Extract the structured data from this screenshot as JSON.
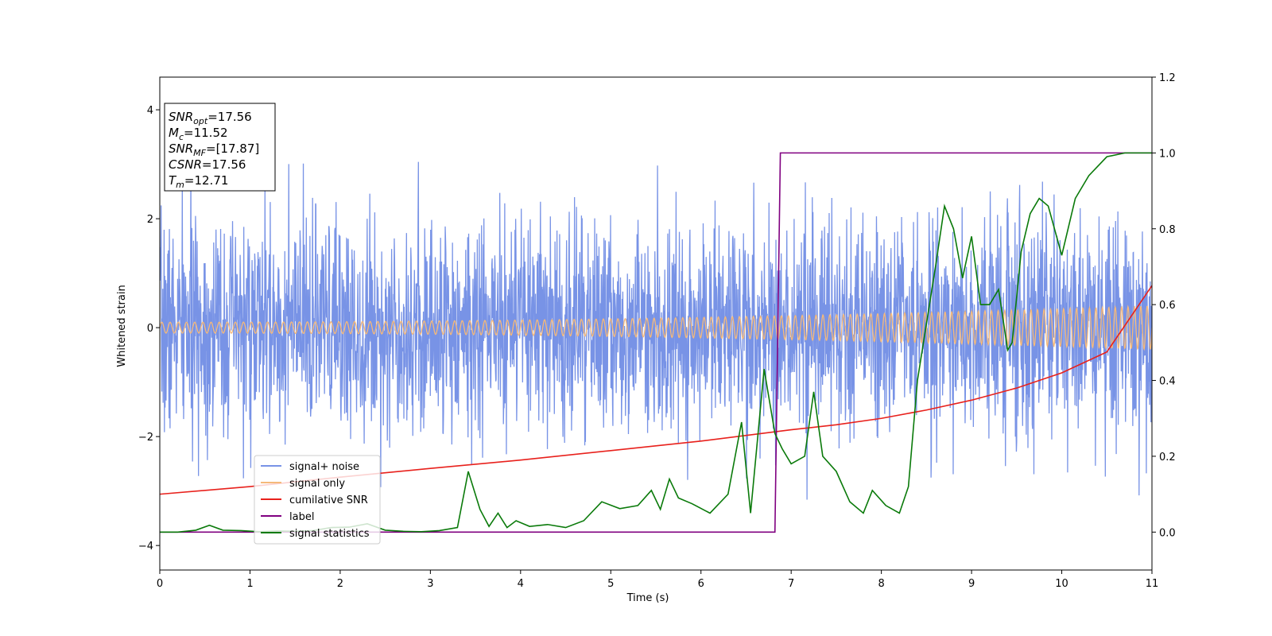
{
  "chart_data": {
    "type": "line",
    "xlabel": "Time (s)",
    "ylabel": "Whitened strain",
    "xlim": [
      0,
      11
    ],
    "ylim": [
      -4.45,
      4.6
    ],
    "y2lim": [
      -0.1,
      1.2
    ],
    "x_ticks": [
      "0",
      "1",
      "2",
      "3",
      "4",
      "5",
      "6",
      "7",
      "8",
      "9",
      "10",
      "11"
    ],
    "y_ticks": [
      "−4",
      "−2",
      "0",
      "2",
      "4"
    ],
    "y2_ticks": [
      "0.0",
      "0.2",
      "0.4",
      "0.6",
      "0.8",
      "1.0",
      "1.2"
    ],
    "grid": false,
    "legend_position": "lower-left",
    "annotation": [
      {
        "base": "SNR",
        "sub": "opt",
        "rest": "=17.56"
      },
      {
        "base": "M",
        "sub": "c",
        "rest": "=11.52"
      },
      {
        "base": "SNR",
        "sub": "MF",
        "rest": "=[17.87]"
      },
      {
        "base": "CSNR",
        "sub": "",
        "rest": "=17.56"
      },
      {
        "base": "T",
        "sub": "m",
        "rest": "=12.71"
      }
    ],
    "series": [
      {
        "name": "signal+ noise",
        "axis": "left",
        "color": "#7893e6",
        "description": "noisy strain, approx. uniform noise amplitude ~1.2 std, peaks up to ±4",
        "noise_std": 1.25,
        "noise_seed": 7
      },
      {
        "name": "signal only",
        "axis": "left",
        "color": "#f5b97a",
        "amplitude_start": 0.1,
        "amplitude_end": 0.4,
        "cycles": 120
      },
      {
        "name": "cumilative SNR",
        "axis": "right",
        "color": "#e8211c",
        "x": [
          0,
          1,
          2,
          3,
          4,
          5,
          6,
          7,
          7.5,
          8,
          8.5,
          9,
          9.5,
          10,
          10.5,
          11
        ],
        "y": [
          0.1,
          0.12,
          0.145,
          0.168,
          0.19,
          0.215,
          0.24,
          0.27,
          0.283,
          0.3,
          0.322,
          0.348,
          0.38,
          0.42,
          0.475,
          0.65
        ]
      },
      {
        "name": "label",
        "axis": "right",
        "color": "#800080",
        "x": [
          0,
          6.82,
          6.88,
          11
        ],
        "y": [
          0,
          0,
          1,
          1
        ]
      },
      {
        "name": "signal statistics",
        "axis": "right",
        "color": "#0a7a0a",
        "x": [
          0,
          0.2,
          0.4,
          0.55,
          0.7,
          0.9,
          1.1,
          1.3,
          1.5,
          1.7,
          1.9,
          2.1,
          2.3,
          2.5,
          2.7,
          2.9,
          3.1,
          3.3,
          3.42,
          3.55,
          3.65,
          3.75,
          3.85,
          3.95,
          4.1,
          4.3,
          4.5,
          4.7,
          4.9,
          5.1,
          5.3,
          5.45,
          5.55,
          5.65,
          5.75,
          5.9,
          6.1,
          6.3,
          6.45,
          6.55,
          6.7,
          6.82,
          6.9,
          7.0,
          7.15,
          7.25,
          7.35,
          7.5,
          7.65,
          7.8,
          7.9,
          8.05,
          8.2,
          8.3,
          8.4,
          8.5,
          8.6,
          8.7,
          8.8,
          8.9,
          9.0,
          9.1,
          9.2,
          9.3,
          9.4,
          9.45,
          9.55,
          9.65,
          9.75,
          9.85,
          10.0,
          10.15,
          10.3,
          10.5,
          10.7,
          10.9,
          11.0
        ],
        "y": [
          0,
          0,
          0.005,
          0.018,
          0.005,
          0.004,
          0.001,
          0.003,
          0.002,
          0.004,
          0.012,
          0.013,
          0.022,
          0.005,
          0.002,
          0.001,
          0.004,
          0.012,
          0.16,
          0.06,
          0.015,
          0.05,
          0.012,
          0.03,
          0.015,
          0.02,
          0.012,
          0.03,
          0.08,
          0.062,
          0.07,
          0.11,
          0.06,
          0.14,
          0.09,
          0.075,
          0.05,
          0.1,
          0.29,
          0.05,
          0.43,
          0.26,
          0.22,
          0.18,
          0.2,
          0.37,
          0.2,
          0.16,
          0.08,
          0.05,
          0.11,
          0.07,
          0.05,
          0.12,
          0.4,
          0.55,
          0.7,
          0.86,
          0.8,
          0.67,
          0.78,
          0.6,
          0.6,
          0.64,
          0.48,
          0.5,
          0.74,
          0.84,
          0.88,
          0.86,
          0.73,
          0.88,
          0.94,
          0.99,
          1.0,
          1.0,
          1.0
        ]
      }
    ]
  }
}
